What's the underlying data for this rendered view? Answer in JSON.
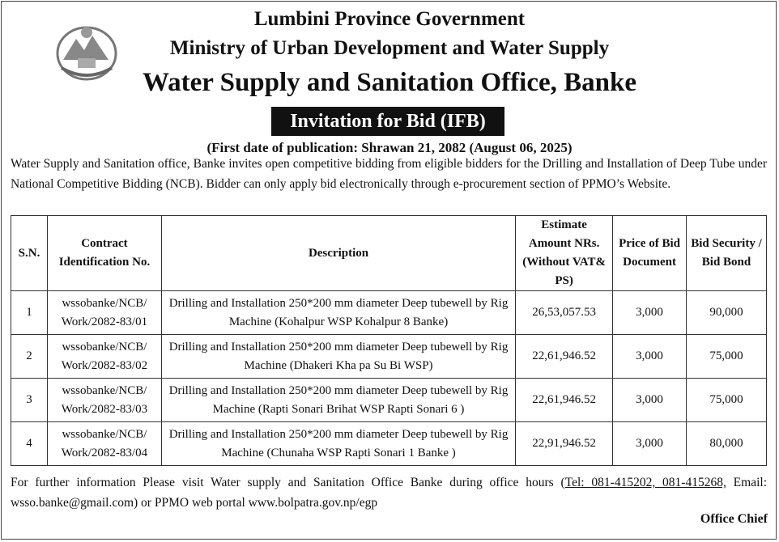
{
  "header": {
    "line1": "Lumbini Province Government",
    "line2": "Ministry of Urban Development and Water Supply",
    "line3": "Water Supply and Sanitation Office, Banke",
    "banner": "Invitation for Bid (IFB)",
    "publication": "(First date of publication: Shrawan 21, 2082 (August 06, 2025)"
  },
  "intro": "Water Supply and Sanitation office, Banke invites open competitive bidding from eligible bidders for the Drilling and Installation of Deep Tube under National Competitive Bidding (NCB). Bidder can only apply bid electronically through e-procurement section of PPMO’s Website.",
  "table": {
    "headers": [
      "S.N.",
      "Contract Identification No.",
      "Description",
      "Estimate Amount NRs. (Without VAT& PS)",
      "Price of Bid Document",
      "Bid Security / Bid Bond"
    ],
    "rows": [
      [
        "1",
        [
          "wssobanke/NCB/",
          "Work/2082-83/01"
        ],
        "Drilling and Installation 250*200 mm diameter Deep tubewell by Rig Machine (Kohalpur WSP Kohalpur 8 Banke)",
        "26,53,057.53",
        "3,000",
        "90,000"
      ],
      [
        "2",
        [
          "wssobanke/NCB/",
          "Work/2082-83/02"
        ],
        "Drilling and Installation 250*200 mm diameter Deep tubewell by Rig Machine (Dhakeri Kha pa Su Bi WSP)",
        "22,61,946.52",
        "3,000",
        "75,000"
      ],
      [
        "3",
        [
          "wssobanke/NCB/",
          "Work/2082-83/03"
        ],
        "Drilling and Installation 250*200 mm diameter Deep tubewell by Rig Machine (Rapti Sonari Brihat WSP Rapti Sonari 6 )",
        "22,61,946.52",
        "3,000",
        "75,000"
      ],
      [
        "4",
        [
          "wssobanke/NCB/",
          "Work/2082-83/04"
        ],
        "Drilling and Installation 250*200 mm diameter Deep tubewell by Rig Machine (Chunaha WSP Rapti Sonari 1 Banke )",
        "22,91,946.52",
        "3,000",
        "80,000"
      ]
    ]
  },
  "footer": {
    "before": "For further information Please visit Water supply and Sanitation Office Banke during office hours (",
    "tel": "Tel: 081-415202, 081-415268,",
    "after": " Email: wsso.banke@gmail.com) or PPMO web portal www.bolpatra.gov.np/egp",
    "signature": "Office Chief"
  }
}
